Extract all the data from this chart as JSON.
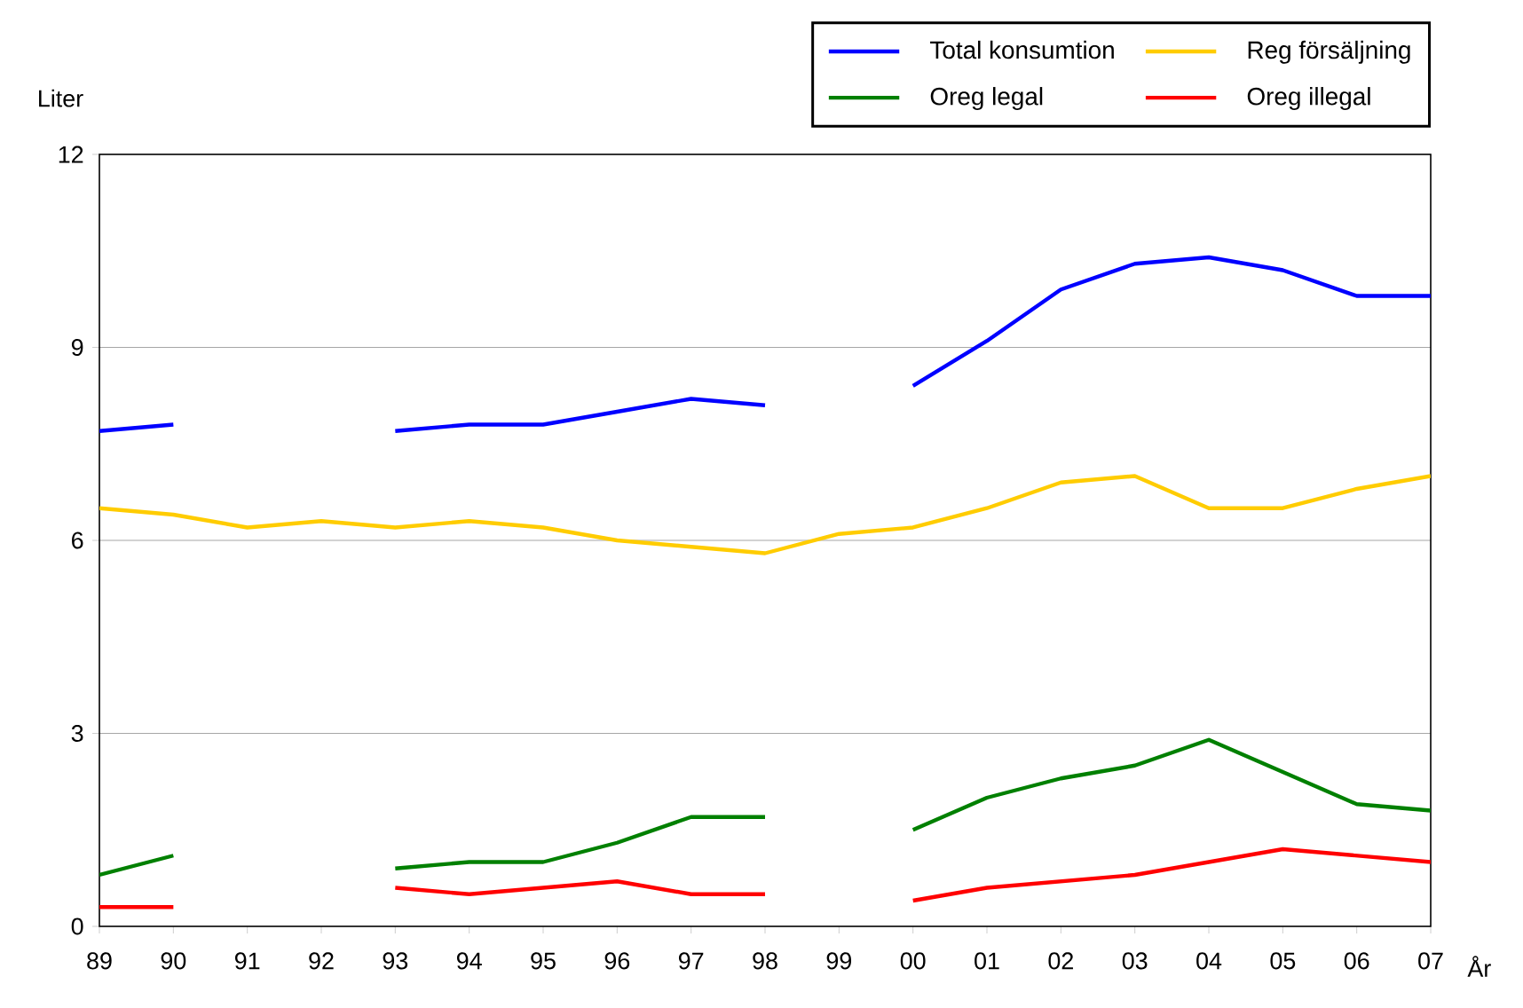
{
  "chart_data": {
    "type": "line",
    "xlabel": "År",
    "ylabel": "Liter",
    "categories": [
      "89",
      "90",
      "91",
      "92",
      "93",
      "94",
      "95",
      "96",
      "97",
      "98",
      "99",
      "00",
      "01",
      "02",
      "03",
      "04",
      "05",
      "06",
      "07"
    ],
    "series": [
      {
        "name": "Total konsumtion",
        "color": "#0000ff",
        "values": [
          7.7,
          7.8,
          null,
          null,
          7.7,
          7.8,
          7.8,
          8.0,
          8.2,
          8.1,
          null,
          8.4,
          9.1,
          9.9,
          10.3,
          10.4,
          10.2,
          9.8,
          9.8
        ]
      },
      {
        "name": "Reg försäljning",
        "color": "#ffcc00",
        "values": [
          6.5,
          6.4,
          6.2,
          6.3,
          6.2,
          6.3,
          6.2,
          6.0,
          5.9,
          5.8,
          6.1,
          6.2,
          6.5,
          6.9,
          7.0,
          6.5,
          6.5,
          6.8,
          7.0
        ]
      },
      {
        "name": "Oreg legal",
        "color": "#008000",
        "values": [
          0.8,
          1.1,
          null,
          null,
          0.9,
          1.0,
          1.0,
          1.3,
          1.7,
          1.7,
          null,
          1.5,
          2.0,
          2.3,
          2.5,
          2.9,
          2.4,
          1.9,
          1.8
        ]
      },
      {
        "name": "Oreg illegal",
        "color": "#ff0000",
        "values": [
          0.3,
          0.3,
          null,
          null,
          0.6,
          0.5,
          0.6,
          0.7,
          0.5,
          0.5,
          null,
          0.4,
          0.6,
          0.7,
          0.8,
          1.0,
          1.2,
          1.1,
          1.0
        ]
      }
    ],
    "ylim": [
      0,
      12
    ],
    "yticks": [
      0,
      3,
      6,
      9,
      12
    ],
    "grid": "y",
    "legend": "top right",
    "line_style": "solid",
    "marker": "none"
  }
}
